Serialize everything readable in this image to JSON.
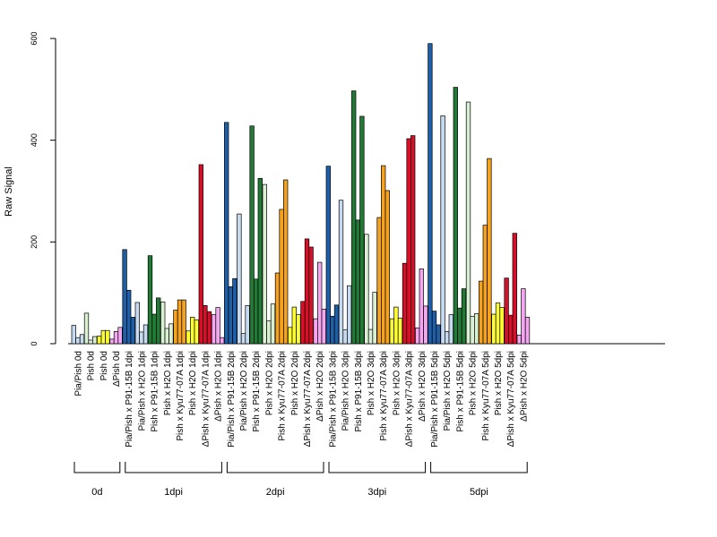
{
  "chart_data": {
    "type": "bar",
    "ylabel": "Raw Signal",
    "ylim": [
      0,
      600
    ],
    "yticks": [
      0,
      200,
      400,
      600
    ],
    "grid": false,
    "categories": [
      "Pia/Pish 0d",
      "Pish 0d",
      "Pish 0d",
      "ΔPish 0d",
      "Pia/Pish x P91-15B 1dpi",
      "Pia/Pish x H2O 1dpi",
      "Pish x P91-15B 1dpi",
      "Pish x H2O 1dpi",
      "Pish x Kyu77-07A 1dpi",
      "Pish x H2O 1dpi",
      "ΔPish x Kyu77-07A 1dpi",
      "ΔPish x H2O 1dpi",
      "Pia/Pish x P91-15B 2dpi",
      "Pia/Pish x H2O 2dpi",
      "Pish x P91-15B 2dpi",
      "Pish x H2O 2dpi",
      "Pish x Kyu77-07A 2dpi",
      "Pish x H2O 2dpi",
      "ΔPish x Kyu77-07A 2dpi",
      "ΔPish x H2O 2dpi",
      "Pia/Pish x P91-15B 3dpi",
      "Pia/Pish x H2O 3dpi",
      "Pish x P91-15B 3dpi",
      "Pish x H2O 3dpi",
      "Pish x Kyu77-07A 3dpi",
      "Pish x H2O 3dpi",
      "ΔPish x Kyu77-07A 3dpi",
      "ΔPish x H2O 3dpi",
      "Pia/Pish x P91-15B 5dpi",
      "Pia/Pish x H2O 5dpi",
      "Pish x P91-15B 5dpi",
      "Pish x H2O 5dpi",
      "Pish x Kyu77-07A 5dpi",
      "Pish x H2O 5dpi",
      "ΔPish x Kyu77-07A 5dpi",
      "ΔPish x H2O 5dpi"
    ],
    "category_colors": [
      "#c6dbef",
      "#d9f0d3",
      "#ffff33",
      "#f4a6f0",
      "#1f5fa8",
      "#c6dbef",
      "#237a37",
      "#d9f0d3",
      "#f5a21f",
      "#ffff33",
      "#d7102a",
      "#f4a6f0",
      "#1f5fa8",
      "#c6dbef",
      "#237a37",
      "#d9f0d3",
      "#f5a21f",
      "#ffff33",
      "#d7102a",
      "#f4a6f0",
      "#1f5fa8",
      "#c6dbef",
      "#237a37",
      "#d9f0d3",
      "#f5a21f",
      "#ffff33",
      "#d7102a",
      "#f4a6f0",
      "#1f5fa8",
      "#c6dbef",
      "#237a37",
      "#d9f0d3",
      "#f5a21f",
      "#ffff33",
      "#d7102a",
      "#f4a6f0"
    ],
    "values": [
      [
        36,
        12,
        18
      ],
      [
        60,
        7,
        14
      ],
      [
        15,
        26,
        26
      ],
      [
        9,
        24,
        32
      ],
      [
        185,
        105,
        52
      ],
      [
        81,
        23,
        37
      ],
      [
        173,
        58,
        90
      ],
      [
        82,
        30,
        39
      ],
      [
        66,
        86,
        86
      ],
      [
        25,
        52,
        47
      ],
      [
        352,
        75,
        63
      ],
      [
        57,
        71,
        12
      ],
      [
        435,
        112,
        128
      ],
      [
        255,
        20,
        75
      ],
      [
        428,
        127,
        325
      ],
      [
        313,
        45,
        78
      ],
      [
        139,
        264,
        322
      ],
      [
        32,
        72,
        57
      ],
      [
        83,
        206,
        190
      ],
      [
        49,
        160,
        68
      ],
      [
        349,
        54,
        76
      ],
      [
        282,
        27,
        114
      ],
      [
        497,
        243,
        447
      ],
      [
        215,
        28,
        101
      ],
      [
        248,
        350,
        301
      ],
      [
        49,
        72,
        50
      ],
      [
        158,
        403,
        409
      ],
      [
        31,
        147,
        74
      ],
      [
        590,
        64,
        37
      ],
      [
        448,
        24,
        57
      ],
      [
        504,
        70,
        108
      ],
      [
        475,
        54,
        59
      ],
      [
        123,
        233,
        364
      ],
      [
        58,
        80,
        71
      ],
      [
        129,
        56,
        217
      ],
      [
        17,
        108,
        52
      ]
    ],
    "groups": [
      {
        "label": "0d",
        "start": 0,
        "end": 3
      },
      {
        "label": "1dpi",
        "start": 4,
        "end": 11
      },
      {
        "label": "2dpi",
        "start": 12,
        "end": 19
      },
      {
        "label": "3dpi",
        "start": 20,
        "end": 27
      },
      {
        "label": "5dpi",
        "start": 28,
        "end": 35
      }
    ]
  }
}
